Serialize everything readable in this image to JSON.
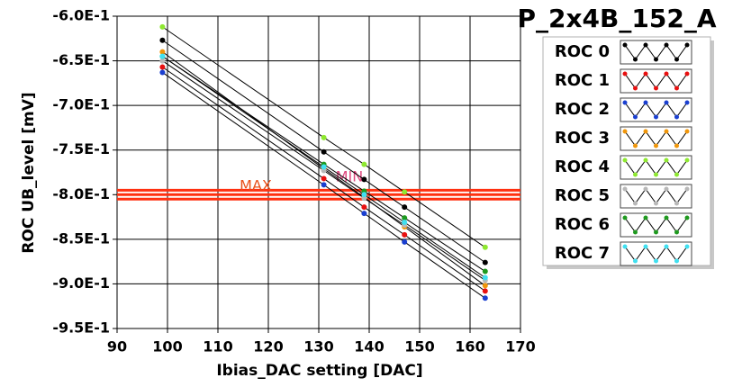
{
  "chart_data": {
    "type": "line",
    "title": "P_2x4B_152_A",
    "x_label": "Ibias_DAC setting [DAC]",
    "y_label": "ROC UB_level [mV]",
    "x": [
      99,
      131,
      139,
      147,
      163
    ],
    "series": [
      {
        "name": "ROC 0",
        "color": "#000000",
        "values": [
          -0.627,
          -0.752,
          -0.783,
          -0.814,
          -0.876
        ]
      },
      {
        "name": "ROC 1",
        "color": "#e81010",
        "values": [
          -0.657,
          -0.782,
          -0.814,
          -0.845,
          -0.908
        ]
      },
      {
        "name": "ROC 2",
        "color": "#1a3fd0",
        "values": [
          -0.663,
          -0.789,
          -0.821,
          -0.853,
          -0.916
        ]
      },
      {
        "name": "ROC 3",
        "color": "#f0960a",
        "values": [
          -0.64,
          -0.771,
          -0.803,
          -0.836,
          -0.902
        ]
      },
      {
        "name": "ROC 4",
        "color": "#8ee830",
        "values": [
          -0.612,
          -0.736,
          -0.766,
          -0.797,
          -0.859
        ]
      },
      {
        "name": "ROC 5",
        "color": "#b8b8b8",
        "values": [
          -0.65,
          -0.773,
          -0.804,
          -0.834,
          -0.896
        ]
      },
      {
        "name": "ROC 6",
        "color": "#1f9a1f",
        "values": [
          -0.645,
          -0.766,
          -0.796,
          -0.826,
          -0.886
        ]
      },
      {
        "name": "ROC 7",
        "color": "#40e0f0",
        "values": [
          -0.645,
          -0.769,
          -0.8,
          -0.831,
          -0.893
        ]
      }
    ],
    "line_color": "#000000",
    "hlines": [
      -0.795,
      -0.8,
      -0.805
    ],
    "hline_color": "#ff3010",
    "annotations": [
      {
        "text": "MAX",
        "color": "#e8501a"
      },
      {
        "text": "MIN",
        "color": "#e04a80"
      }
    ],
    "xlim": [
      90,
      170
    ],
    "xticks": [
      90,
      100,
      110,
      120,
      130,
      140,
      150,
      160,
      170
    ],
    "ylim": [
      -0.95,
      -0.6
    ],
    "yticks": [
      {
        "value": -0.6,
        "label": "-6.0E-1"
      },
      {
        "value": -0.65,
        "label": "-6.5E-1"
      },
      {
        "value": -0.7,
        "label": "-7.0E-1"
      },
      {
        "value": -0.75,
        "label": "-7.5E-1"
      },
      {
        "value": -0.8,
        "label": "-8.0E-1"
      },
      {
        "value": -0.85,
        "label": "-8.5E-1"
      },
      {
        "value": -0.9,
        "label": "-9.0E-1"
      },
      {
        "value": -0.95,
        "label": "-9.5E-1"
      }
    ],
    "grid": true,
    "legend": "right"
  }
}
